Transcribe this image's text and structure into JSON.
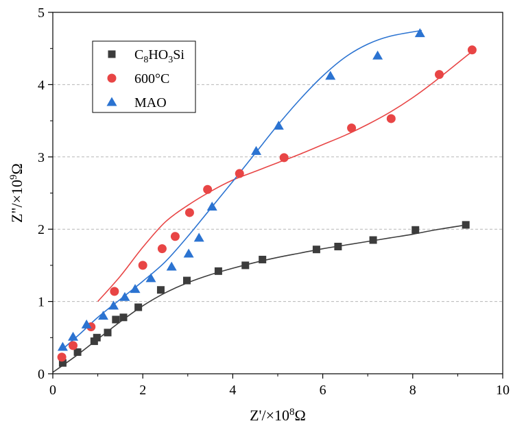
{
  "chart_data": {
    "type": "scatter",
    "xlabel": {
      "base": "Z'/×10",
      "exp": "8",
      "unit": "Ω"
    },
    "ylabel": {
      "base": "Z\"/×10",
      "exp": "9",
      "unit": "Ω"
    },
    "xlim": [
      0,
      10
    ],
    "ylim": [
      0,
      5
    ],
    "xticks": [
      "0",
      "2",
      "4",
      "6",
      "8",
      "10"
    ],
    "yticks": [
      "0",
      "1",
      "2",
      "3",
      "4",
      "5"
    ],
    "grid": "horizontal-dashed",
    "legend_position": "top-left",
    "series": [
      {
        "name": "C8HO3Si",
        "name_parts": [
          "C",
          "8",
          "HO",
          "3",
          "Si"
        ],
        "marker": "square",
        "color": "#3c3c3c",
        "points": [
          [
            0.22,
            0.15
          ],
          [
            0.55,
            0.3
          ],
          [
            0.92,
            0.45
          ],
          [
            0.98,
            0.5
          ],
          [
            1.22,
            0.57
          ],
          [
            1.4,
            0.75
          ],
          [
            1.57,
            0.78
          ],
          [
            1.9,
            0.92
          ],
          [
            2.4,
            1.16
          ],
          [
            2.98,
            1.29
          ],
          [
            3.68,
            1.42
          ],
          [
            4.28,
            1.5
          ],
          [
            4.66,
            1.58
          ],
          [
            5.86,
            1.72
          ],
          [
            6.34,
            1.76
          ],
          [
            7.12,
            1.85
          ],
          [
            8.06,
            1.99
          ],
          [
            9.18,
            2.06
          ]
        ],
        "fit": [
          [
            0,
            0.02
          ],
          [
            0.5,
            0.24
          ],
          [
            1.0,
            0.48
          ],
          [
            1.5,
            0.72
          ],
          [
            2.0,
            0.94
          ],
          [
            2.5,
            1.12
          ],
          [
            3.0,
            1.26
          ],
          [
            3.5,
            1.37
          ],
          [
            4.0,
            1.46
          ],
          [
            4.5,
            1.54
          ],
          [
            5.0,
            1.61
          ],
          [
            5.5,
            1.67
          ],
          [
            6.0,
            1.73
          ],
          [
            6.5,
            1.78
          ],
          [
            7.0,
            1.83
          ],
          [
            7.5,
            1.88
          ],
          [
            8.0,
            1.93
          ],
          [
            8.5,
            1.99
          ],
          [
            9.2,
            2.06
          ]
        ]
      },
      {
        "name": "600°C",
        "marker": "circle",
        "color": "#e84545",
        "points": [
          [
            0.2,
            0.23
          ],
          [
            0.45,
            0.39
          ],
          [
            0.85,
            0.65
          ],
          [
            1.37,
            1.14
          ],
          [
            2.0,
            1.5
          ],
          [
            2.43,
            1.73
          ],
          [
            2.72,
            1.9
          ],
          [
            3.04,
            2.23
          ],
          [
            3.44,
            2.55
          ],
          [
            4.15,
            2.77
          ],
          [
            5.14,
            2.99
          ],
          [
            6.64,
            3.4
          ],
          [
            7.52,
            3.53
          ],
          [
            8.59,
            4.14
          ],
          [
            9.32,
            4.48
          ]
        ],
        "fit": [
          [
            1.0,
            1.0
          ],
          [
            1.5,
            1.35
          ],
          [
            2.0,
            1.75
          ],
          [
            2.5,
            2.1
          ],
          [
            3.0,
            2.33
          ],
          [
            3.5,
            2.52
          ],
          [
            4.0,
            2.68
          ],
          [
            4.5,
            2.8
          ],
          [
            5.0,
            2.92
          ],
          [
            5.5,
            3.04
          ],
          [
            6.0,
            3.17
          ],
          [
            6.5,
            3.3
          ],
          [
            7.0,
            3.45
          ],
          [
            7.5,
            3.62
          ],
          [
            8.0,
            3.82
          ],
          [
            8.5,
            4.05
          ],
          [
            9.3,
            4.45
          ]
        ]
      },
      {
        "name": "MAO",
        "marker": "triangle",
        "color": "#2b73d1",
        "points": [
          [
            0.22,
            0.37
          ],
          [
            0.45,
            0.51
          ],
          [
            0.75,
            0.68
          ],
          [
            1.12,
            0.8
          ],
          [
            1.35,
            0.94
          ],
          [
            1.6,
            1.06
          ],
          [
            1.83,
            1.17
          ],
          [
            2.18,
            1.32
          ],
          [
            2.64,
            1.48
          ],
          [
            3.02,
            1.66
          ],
          [
            3.25,
            1.88
          ],
          [
            3.54,
            2.31
          ],
          [
            4.52,
            3.08
          ],
          [
            5.02,
            3.43
          ],
          [
            6.17,
            4.12
          ],
          [
            7.22,
            4.4
          ],
          [
            8.16,
            4.71
          ]
        ],
        "fit": [
          [
            0.2,
            0.33
          ],
          [
            0.6,
            0.55
          ],
          [
            1.0,
            0.78
          ],
          [
            1.5,
            1.03
          ],
          [
            2.0,
            1.28
          ],
          [
            2.5,
            1.55
          ],
          [
            3.0,
            1.9
          ],
          [
            3.5,
            2.28
          ],
          [
            4.0,
            2.66
          ],
          [
            4.5,
            3.05
          ],
          [
            5.0,
            3.44
          ],
          [
            5.5,
            3.8
          ],
          [
            6.0,
            4.12
          ],
          [
            6.5,
            4.38
          ],
          [
            7.0,
            4.56
          ],
          [
            7.5,
            4.67
          ],
          [
            8.2,
            4.75
          ]
        ]
      }
    ]
  }
}
